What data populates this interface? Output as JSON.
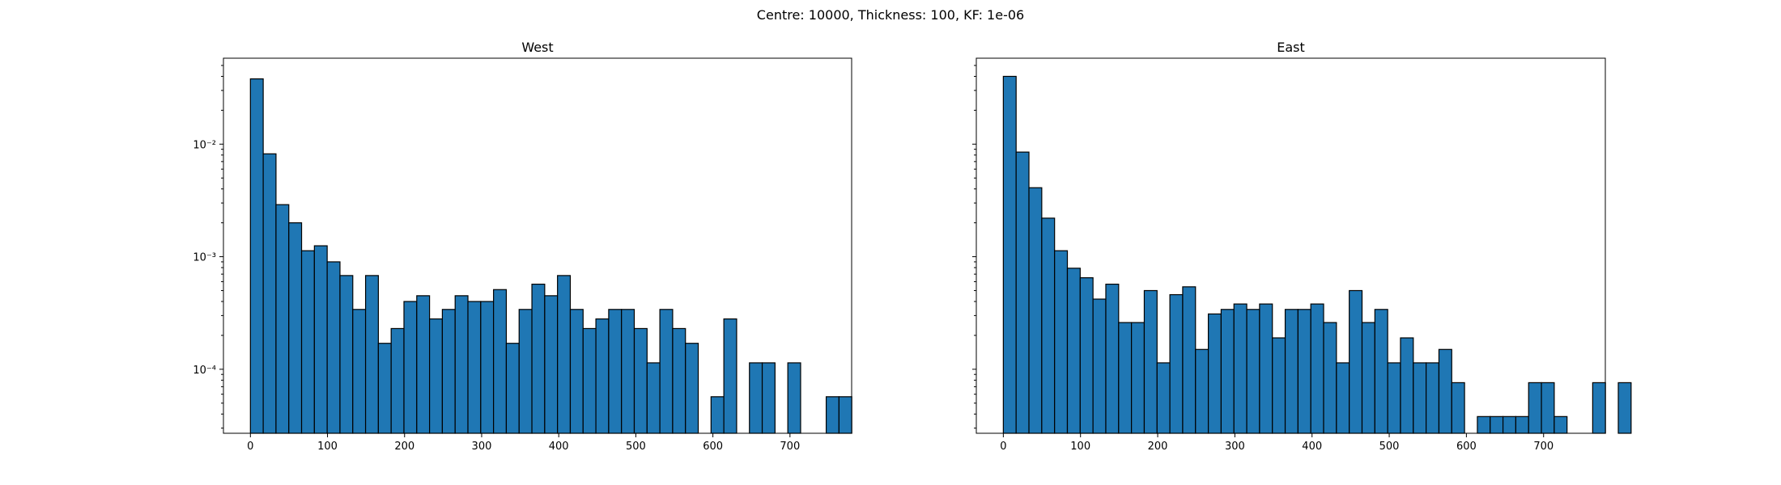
{
  "figure": {
    "suptitle": "Centre: 10000, Thickness: 100, KF: 1e-06"
  },
  "chart_data": [
    {
      "type": "bar",
      "title": "West",
      "xlabel": "",
      "ylabel": "",
      "yscale": "log",
      "xlim": [
        -35,
        780
      ],
      "ylim": [
        2.7e-05,
        0.058
      ],
      "x_ticks": [
        0,
        100,
        200,
        300,
        400,
        500,
        600,
        700
      ],
      "y_ticks": [
        {
          "value": 0.0001,
          "label": "10⁻⁴"
        },
        {
          "value": 0.001,
          "label": "10⁻³"
        },
        {
          "value": 0.01,
          "label": "10⁻²"
        }
      ],
      "bin_width": 16.6,
      "bin_start": 0,
      "values": [
        0.038,
        0.0082,
        0.0029,
        0.002,
        0.00113,
        0.00125,
        0.0009,
        0.00068,
        0.00034,
        0.00068,
        0.00017,
        0.00023,
        0.0004,
        0.00045,
        0.00028,
        0.00034,
        0.00045,
        0.0004,
        0.0004,
        0.00051,
        0.00017,
        0.00034,
        0.00057,
        0.00045,
        0.00068,
        0.00034,
        0.00023,
        0.00028,
        0.00034,
        0.00034,
        0.00023,
        0.000114,
        0.00034,
        0.00023,
        0.00017,
        0,
        5.7e-05,
        0.00028,
        0,
        0.000114,
        0.000114,
        0,
        0.000114,
        0,
        0,
        5.7e-05,
        5.7e-05
      ]
    },
    {
      "type": "bar",
      "title": "East",
      "xlabel": "",
      "ylabel": "",
      "yscale": "log",
      "xlim": [
        -35,
        780
      ],
      "ylim": [
        2.7e-05,
        0.058
      ],
      "x_ticks": [
        0,
        100,
        200,
        300,
        400,
        500,
        600,
        700
      ],
      "y_ticks": [
        {
          "value": 0.0001,
          "label": ""
        },
        {
          "value": 0.001,
          "label": ""
        },
        {
          "value": 0.01,
          "label": ""
        }
      ],
      "bin_width": 16.6,
      "bin_start": 0,
      "values": [
        0.04,
        0.0085,
        0.0041,
        0.0022,
        0.00113,
        0.00079,
        0.00065,
        0.00042,
        0.00057,
        0.00026,
        0.00026,
        0.0005,
        0.000114,
        0.00046,
        0.00054,
        0.00015,
        0.00031,
        0.00034,
        0.00038,
        0.00034,
        0.00038,
        0.00019,
        0.00034,
        0.00034,
        0.00038,
        0.00026,
        0.000114,
        0.0005,
        0.00026,
        0.00034,
        0.000114,
        0.00019,
        0.000114,
        0.000114,
        0.00015,
        7.6e-05,
        0,
        3.8e-05,
        3.8e-05,
        3.8e-05,
        3.8e-05,
        7.6e-05,
        7.6e-05,
        3.8e-05,
        0,
        0,
        7.6e-05,
        0,
        7.6e-05
      ]
    }
  ]
}
